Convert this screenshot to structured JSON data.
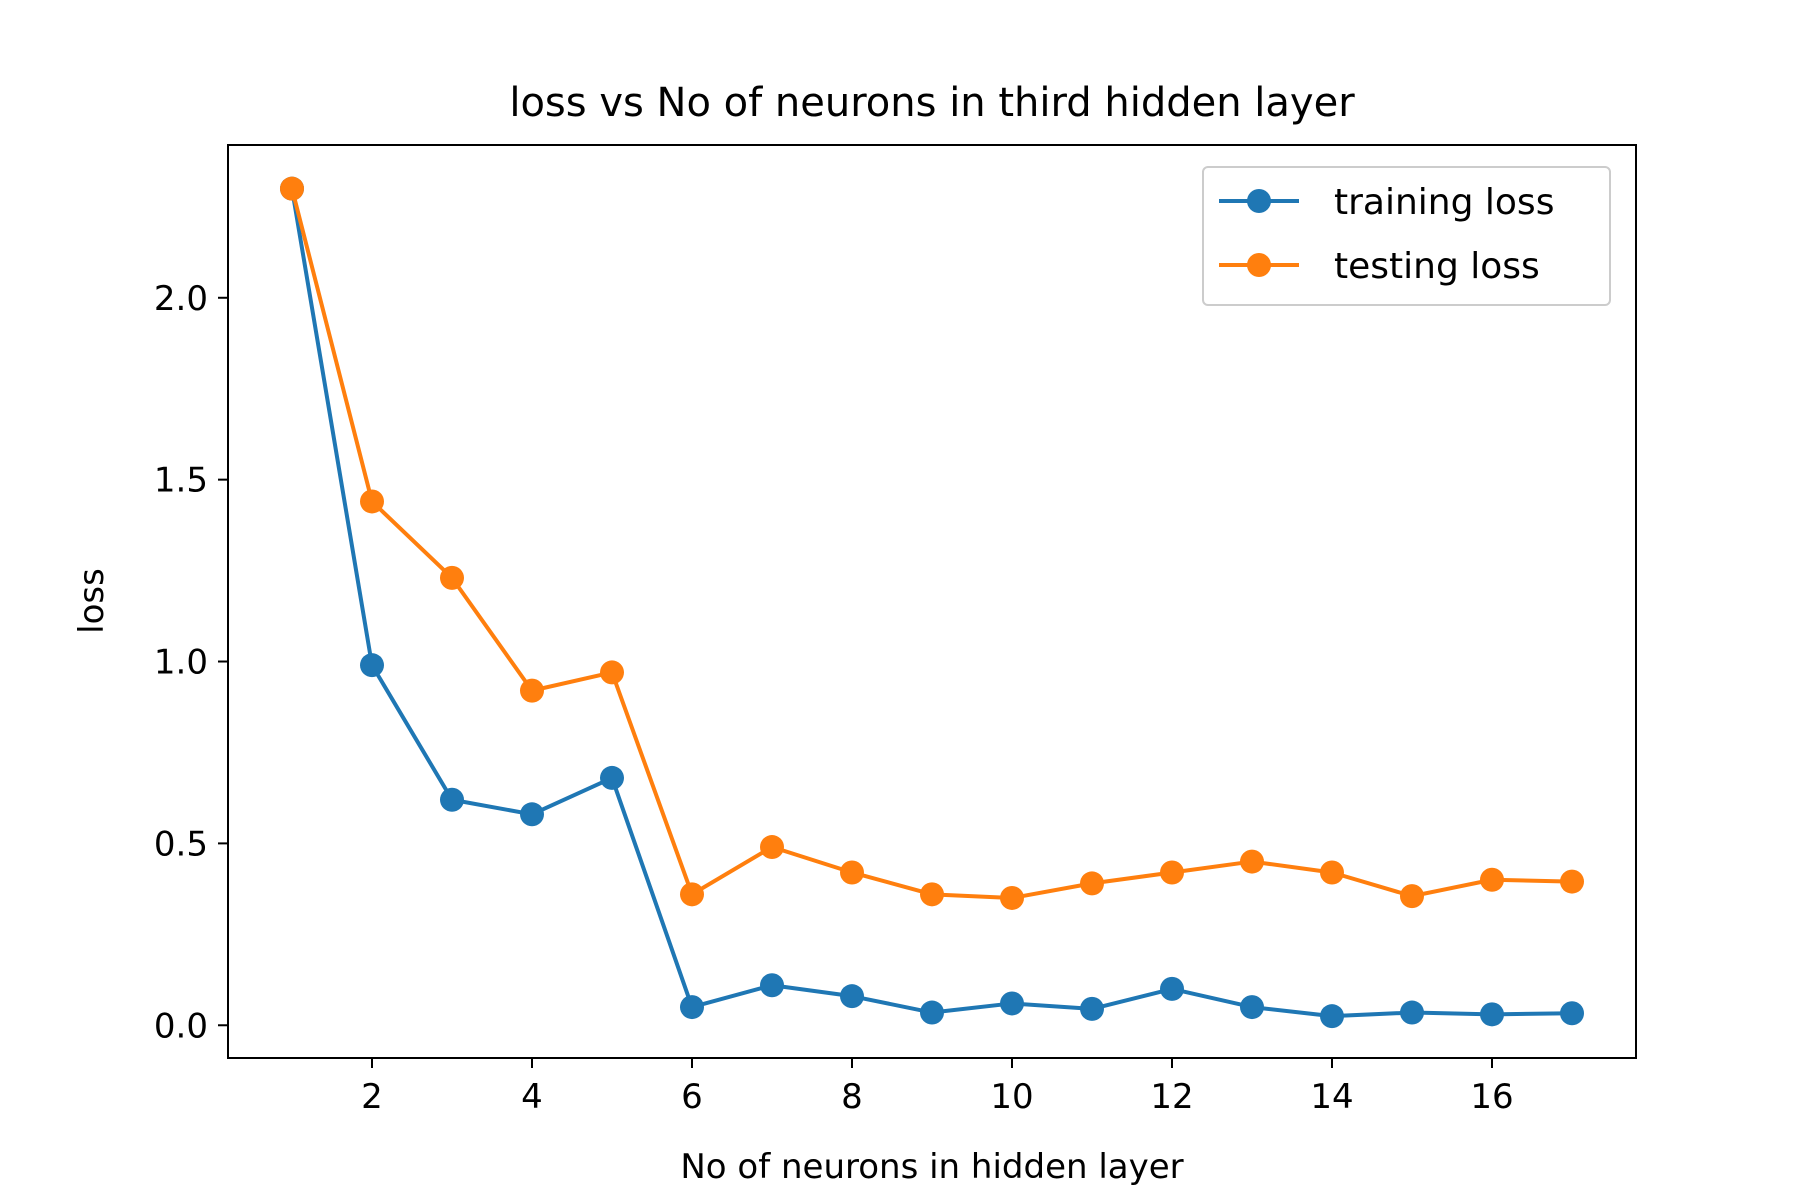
{
  "chart_data": {
    "type": "line",
    "title": "loss vs No of neurons in third hidden layer",
    "xlabel": "No of neurons in hidden layer",
    "ylabel": "loss",
    "x": [
      1,
      2,
      3,
      4,
      5,
      6,
      7,
      8,
      9,
      10,
      11,
      12,
      13,
      14,
      15,
      16,
      17
    ],
    "xlim": [
      0.2,
      17.8
    ],
    "ylim": [
      -0.09,
      2.42
    ],
    "xticks": [
      2,
      4,
      6,
      8,
      10,
      12,
      14,
      16
    ],
    "xtick_labels": [
      "2",
      "4",
      "6",
      "8",
      "10",
      "12",
      "14",
      "16"
    ],
    "yticks": [
      0.0,
      0.5,
      1.0,
      1.5,
      2.0
    ],
    "ytick_labels": [
      "0.0",
      "0.5",
      "1.0",
      "1.5",
      "2.0"
    ],
    "grid": false,
    "legend_position": "top-right",
    "series": [
      {
        "name": "training loss",
        "color": "#1f77b4",
        "marker": "circle",
        "values": [
          2.3,
          0.99,
          0.62,
          0.58,
          0.68,
          0.05,
          0.11,
          0.08,
          0.035,
          0.06,
          0.045,
          0.1,
          0.05,
          0.025,
          0.035,
          0.03,
          0.033
        ]
      },
      {
        "name": "testing loss",
        "color": "#ff7f0e",
        "marker": "circle",
        "values": [
          2.3,
          1.44,
          1.23,
          0.92,
          0.97,
          0.36,
          0.49,
          0.42,
          0.36,
          0.35,
          0.39,
          0.42,
          0.45,
          0.42,
          0.355,
          0.4,
          0.395
        ]
      }
    ]
  }
}
